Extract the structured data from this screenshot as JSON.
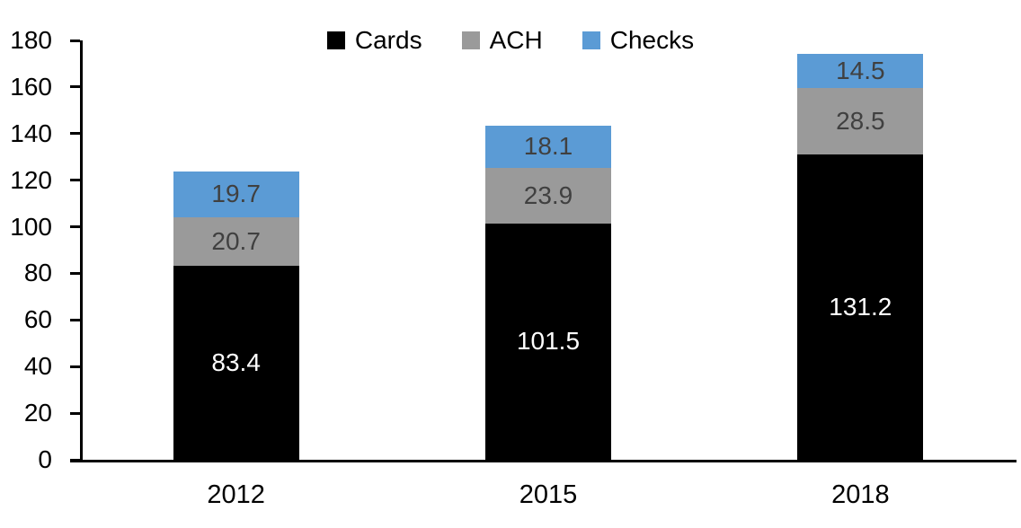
{
  "chart_data": {
    "type": "bar",
    "stacked": true,
    "title": "",
    "xlabel": "",
    "ylabel": "",
    "categories": [
      "2012",
      "2015",
      "2018"
    ],
    "series": [
      {
        "name": "Cards",
        "color": "#000000",
        "label_color": "#ffffff",
        "values": [
          83.4,
          101.5,
          131.2
        ]
      },
      {
        "name": "ACH",
        "color": "#9a9a9a",
        "label_color": "#404040",
        "values": [
          20.7,
          23.9,
          28.5
        ]
      },
      {
        "name": "Checks",
        "color": "#5b9bd5",
        "label_color": "#404040",
        "values": [
          19.7,
          18.1,
          14.5
        ]
      }
    ],
    "totals": [
      123.8,
      143.5,
      174.2
    ],
    "ylim": [
      0,
      180
    ],
    "ytick_step": 20,
    "yticks": [
      0,
      20,
      40,
      60,
      80,
      100,
      120,
      140,
      160,
      180
    ],
    "grid": false,
    "legend_position": "top-center",
    "axis_color": "#000000",
    "background_color": "#ffffff"
  }
}
